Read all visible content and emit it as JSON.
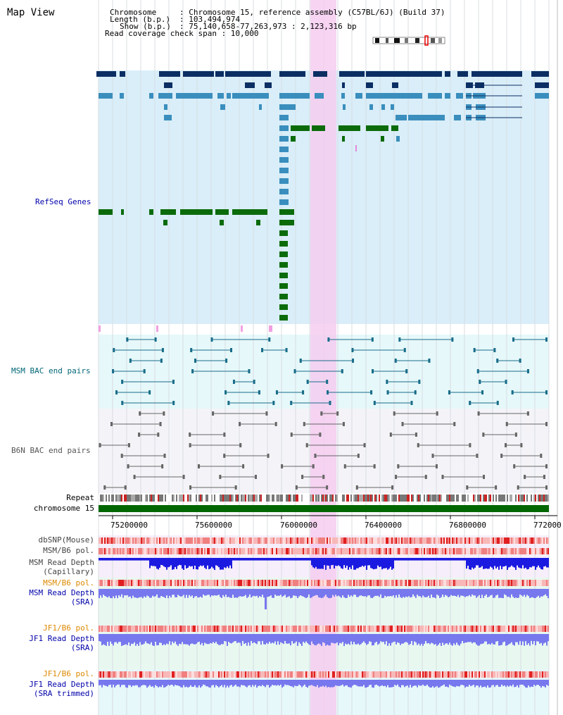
{
  "view_title": "Map View",
  "info": {
    "chromosome_key": "Chromosome",
    "chromosome_val": ": Chromosome 15, reference assembly (C57BL/6J) (Build 37)",
    "length_key": "Length (b.p.)",
    "length_val": ": 103,494,974",
    "show_key": "Show (b.p.)",
    "show_val": ": 75,140,658-77,263,973 : 2,123,316 bp",
    "coverage": "Read coverage check span : 10,000"
  },
  "tracks": {
    "refseq": "RefSeq Genes",
    "msm_bac": "MSM BAC end pairs",
    "b6n_bac": "B6N BAC end pairs",
    "repeat": "Repeat",
    "chromosome": "chromosome 15",
    "dbsnp": "dbSNP(Mouse)",
    "msm_b6_pol": "MSM/B6 pol.",
    "msm_depth_cap_1": "MSM Read Depth",
    "msm_depth_cap_2": "(Capillary)",
    "msm_b6_pol2": "MSM/B6 pol.",
    "msm_depth_sra_1": "MSM Read Depth",
    "msm_depth_sra_2": "(SRA)",
    "jf1_b6_pol": "JF1/B6 pol.",
    "jf1_depth_sra_1": "JF1 Read Depth",
    "jf1_depth_sra_2": "(SRA)",
    "jf1_b6_pol2": "JF1/B6 pol.",
    "jf1_depth_trim_1": "JF1 Read Depth",
    "jf1_depth_trim_2": "(SRA trimmed)"
  },
  "axis_ticks": [
    "75200000",
    "75600000",
    "76000000",
    "76400000",
    "76800000",
    "772000"
  ],
  "colors": {
    "refseq_dark": "#0b2e63",
    "refseq_mid": "#3a8ebd",
    "refseq_green": "#0b6b0b",
    "refseq_bg": "#d9eef9",
    "bac_bg": "#e6f8fa",
    "b6n_bg": "#f4f4f8",
    "highlight": "#f5cdf0",
    "chromosome": "#006600",
    "label_blue": "#0000aa",
    "label_teal": "#006677",
    "label_orange": "#dd8800",
    "depth_blue": "#1a1ae0",
    "depth_light": "#7777ee"
  }
}
